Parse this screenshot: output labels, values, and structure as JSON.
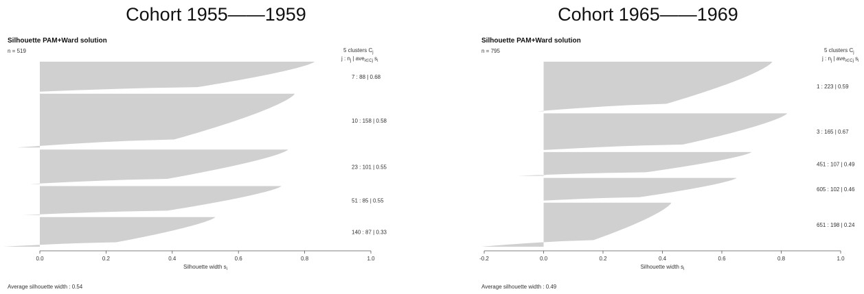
{
  "chart_data": [
    {
      "type": "bar",
      "cohort_title": "Cohort 1955——1959",
      "title": "Silhouette PAM+Ward solution",
      "n_text": "n = 519",
      "legend_header": "5  clusters  C",
      "legend_header_sub": "j",
      "legend_subheader": "j :  n",
      "legend_subheader_sub1": "j",
      "legend_subheader_mid": " | ave",
      "legend_subheader_sub2": "i∈Cj",
      "legend_subheader_end": "  s",
      "legend_subheader_sub3": "i",
      "xlabel": "Silhouette width  s",
      "xlabel_sub": "i",
      "ylabel": "",
      "xlim": [
        0.0,
        1.0
      ],
      "xticks": [
        "0.0",
        "0.2",
        "0.4",
        "0.6",
        "0.8",
        "1.0"
      ],
      "average_text": "Average silhouette width :  0.54",
      "average": 0.54,
      "clusters": [
        {
          "label": "7 :   88  |  0.68",
          "id": 7,
          "n": 88,
          "avg": 0.68,
          "max": 0.83,
          "min": 0.0
        },
        {
          "label": "10 :   158  |  0.58",
          "id": 10,
          "n": 158,
          "avg": 0.58,
          "max": 0.77,
          "min": -0.07
        },
        {
          "label": "23 :   101  |  0.55",
          "id": 23,
          "n": 101,
          "avg": 0.55,
          "max": 0.75,
          "min": -0.03
        },
        {
          "label": "51 :   85  |  0.55",
          "id": 51,
          "n": 85,
          "avg": 0.55,
          "max": 0.73,
          "min": -0.05
        },
        {
          "label": "140 :   87  |  0.33",
          "id": 140,
          "n": 87,
          "avg": 0.33,
          "max": 0.53,
          "min": -0.11
        }
      ]
    },
    {
      "type": "bar",
      "cohort_title": "Cohort 1965——1969",
      "title": "Silhouette PAM+Ward solution",
      "n_text": "n = 795",
      "legend_header": "5  clusters  C",
      "legend_header_sub": "j",
      "legend_subheader": "j :  n",
      "legend_subheader_sub1": "j",
      "legend_subheader_mid": " | ave",
      "legend_subheader_sub2": "i∈Cj",
      "legend_subheader_end": "  s",
      "legend_subheader_sub3": "i",
      "xlabel": "Silhouette width  s",
      "xlabel_sub": "i",
      "ylabel": "",
      "xlim": [
        -0.2,
        1.0
      ],
      "xticks": [
        "-0.2",
        "0.0",
        "0.2",
        "0.4",
        "0.6",
        "0.8",
        "1.0"
      ],
      "average_text": "Average silhouette width :  0.49",
      "average": 0.49,
      "clusters": [
        {
          "label": "1 :   223  |  0.59",
          "id": 1,
          "n": 223,
          "avg": 0.59,
          "max": 0.77,
          "min": -0.02
        },
        {
          "label": "3 :   165  |  0.67",
          "id": 3,
          "n": 165,
          "avg": 0.67,
          "max": 0.82,
          "min": 0.0
        },
        {
          "label": "451 :   107  |  0.49",
          "id": 451,
          "n": 107,
          "avg": 0.49,
          "max": 0.7,
          "min": -0.09
        },
        {
          "label": "605 :   102  |  0.46",
          "id": 605,
          "n": 102,
          "avg": 0.46,
          "max": 0.65,
          "min": 0.0
        },
        {
          "label": "651 :   198  |  0.24",
          "id": 651,
          "n": 198,
          "avg": 0.24,
          "max": 0.43,
          "min": -0.21
        }
      ]
    }
  ],
  "colors": {
    "bar": "#cfd0cf",
    "axis": "#555555",
    "text": "#333333"
  }
}
